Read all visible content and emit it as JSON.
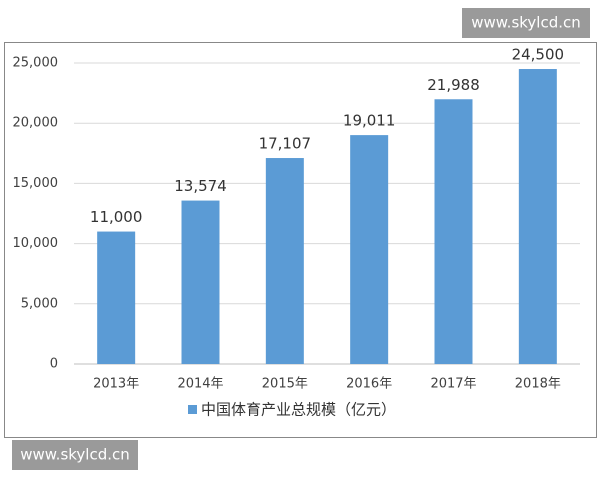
{
  "watermarks": [
    "www.skylcd.cn",
    "www.skylcd.cn"
  ],
  "chart_data": {
    "type": "bar",
    "categories": [
      "2013年",
      "2014年",
      "2015年",
      "2016年",
      "2017年",
      "2018年"
    ],
    "series": [
      {
        "name": "中国体育产业总规模（亿元）",
        "color": "#5b9bd5",
        "values": [
          11000,
          13574,
          17107,
          19011,
          21988,
          24500
        ],
        "value_labels": [
          "11,000",
          "13,574",
          "17,107",
          "19,011",
          "21,988",
          "24,500"
        ]
      }
    ],
    "ylim": [
      0,
      25000
    ],
    "yticks": [
      0,
      {
        "value": 5000,
        "label": "5,000"
      },
      {
        "value": 10000,
        "label": "10,000"
      },
      {
        "value": 15000,
        "label": "15,000"
      },
      {
        "value": 20000,
        "label": "20,000"
      },
      {
        "value": 25000,
        "label": "25,000"
      }
    ],
    "grid": true,
    "legend": "bottom"
  }
}
